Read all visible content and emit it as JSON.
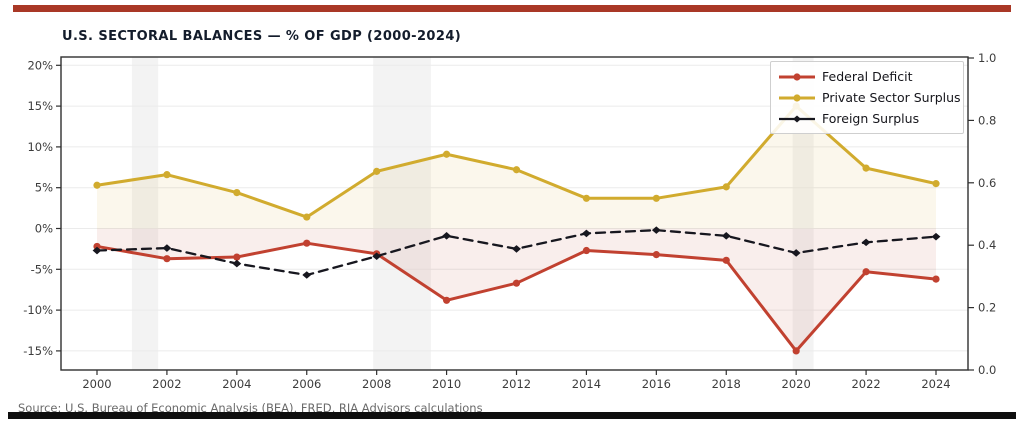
{
  "header": {
    "title": "U.S. SECTORAL BALANCES — % OF GDP (2000-2024)"
  },
  "footer": {
    "source_note": "Source: U.S. Bureau of Economic Analysis (BEA), FRED, RIA Advisors calculations"
  },
  "colors": {
    "accent_top_bar": "#a93826",
    "bottom_bar": "#0e0e0e",
    "federal_deficit": "#c14130",
    "private_surplus": "#d1ab2e",
    "foreign_surplus": "#17171f",
    "grid_line": "#ebebeb",
    "recession_band": "#f3f3f3",
    "axis_box": "#2f2f2f",
    "tick_text": "#3c3c3c"
  },
  "chart_data": {
    "type": "line",
    "title": "U.S. SECTORAL BALANCES — % OF GDP (2000-2024)",
    "x": [
      2000,
      2002,
      2004,
      2006,
      2008,
      2010,
      2012,
      2014,
      2016,
      2018,
      2020,
      2022,
      2024
    ],
    "x_tick_labels": [
      "2000",
      "2002",
      "2004",
      "2006",
      "2008",
      "2010",
      "2012",
      "2014",
      "2016",
      "2018",
      "2020",
      "2022",
      "2024"
    ],
    "series": [
      {
        "name": "Federal Deficit",
        "color": "#c14130",
        "style": "solid",
        "marker": "circle",
        "fill_to_zero": true,
        "values": [
          -2.2,
          -3.7,
          -3.5,
          -1.8,
          -3.1,
          -8.8,
          -6.7,
          -2.7,
          -3.2,
          -3.9,
          -15.0,
          -5.3,
          -6.2
        ]
      },
      {
        "name": "Private Sector Surplus",
        "color": "#d1ab2e",
        "style": "solid",
        "marker": "circle",
        "fill_to_zero": true,
        "values": [
          5.3,
          6.6,
          4.4,
          1.4,
          7.0,
          9.1,
          7.2,
          3.7,
          3.7,
          5.1,
          15.0,
          7.4,
          5.5
        ]
      },
      {
        "name": "Foreign Surplus",
        "color": "#17171f",
        "style": "dashed",
        "marker": "diamond",
        "fill_to_zero": false,
        "values": [
          -2.7,
          -2.4,
          -4.3,
          -5.7,
          -3.4,
          -0.9,
          -2.5,
          -0.6,
          -0.2,
          -0.9,
          -3.0,
          -1.7,
          -1.0
        ]
      }
    ],
    "left_axis": {
      "unit": "% of GDP",
      "tick_values": [
        20,
        15,
        10,
        5,
        0,
        -5,
        -10,
        -15
      ],
      "tick_labels": [
        "20%",
        "15%",
        "10%",
        "5%",
        "0%",
        "-5%",
        "-10%",
        "-15%"
      ],
      "range": [
        -17.2,
        21.1
      ]
    },
    "right_axis": {
      "tick_values": [
        1.0,
        0.8,
        0.6,
        0.4,
        0.2,
        0.0
      ],
      "tick_labels": [
        "1.0",
        "0.8",
        "0.6",
        "0.4",
        "0.2",
        "0.0"
      ],
      "range": [
        0.0,
        1.0
      ]
    },
    "recession_bands": [
      [
        2001.0,
        2001.75
      ],
      [
        2007.9,
        2009.55
      ],
      [
        2019.9,
        2020.5
      ]
    ],
    "legend": {
      "position": "top-right",
      "entries": [
        "Federal Deficit",
        "Private Sector Surplus",
        "Foreign Surplus"
      ]
    },
    "grid": "horizontal"
  }
}
